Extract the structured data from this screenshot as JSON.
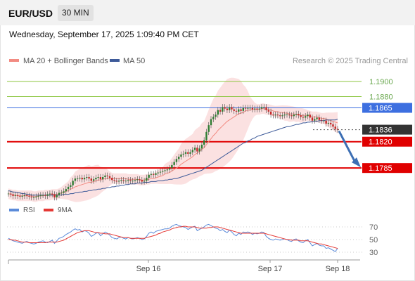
{
  "header": {
    "symbol": "EUR/USD",
    "timeframe": "30 MIN"
  },
  "datetime": "Wednesday, September 17, 2025 1:09:40 PM CET",
  "legend": {
    "items": [
      {
        "label": "MA 20 + Bollinger Bands",
        "color": "#f28b82"
      },
      {
        "label": "MA 50",
        "color": "#3d5a99"
      }
    ],
    "credit": "Research © 2025 Trading Central"
  },
  "rsi_legend": {
    "items": [
      {
        "label": "RSI",
        "color": "#5b8bd9"
      },
      {
        "label": "9MA",
        "color": "#e53935"
      }
    ]
  },
  "chart_data": [
    {
      "type": "line",
      "title": "",
      "ylim": [
        1.1745,
        1.1915
      ],
      "x_tick_labels": [
        "Sep 16",
        "Sep 17",
        "Sep 18"
      ],
      "levels": [
        {
          "label": "1.1900",
          "value": 1.19,
          "kind": "target",
          "color": "#8cc63f"
        },
        {
          "label": "1.1880",
          "value": 1.188,
          "kind": "target",
          "color": "#8cc63f"
        },
        {
          "label": "1.1865",
          "value": 1.1865,
          "kind": "pivot",
          "color": "#3d6fe0"
        },
        {
          "label": "1.1836",
          "value": 1.1836,
          "kind": "last",
          "color": "#333333"
        },
        {
          "label": "1.1820",
          "value": 1.182,
          "kind": "support",
          "color": "#e00000"
        },
        {
          "label": "1.1785",
          "value": 1.1785,
          "kind": "support",
          "color": "#e00000"
        }
      ],
      "series": [
        {
          "name": "Price",
          "values": [
            1.1751,
            1.175,
            1.1748,
            1.1749,
            1.1748,
            1.1747,
            1.1748,
            1.1749,
            1.1748,
            1.1747,
            1.1746,
            1.1746,
            1.1747,
            1.1748,
            1.1749,
            1.1749,
            1.1748,
            1.175,
            1.1751,
            1.175,
            1.1746,
            1.1749,
            1.1752,
            1.1752,
            1.1754,
            1.1757,
            1.176,
            1.1762,
            1.1768,
            1.1771,
            1.1771,
            1.1772,
            1.177,
            1.1772,
            1.1773,
            1.1771,
            1.1768,
            1.177,
            1.1772,
            1.1773,
            1.177,
            1.1773,
            1.1775,
            1.1774,
            1.1772,
            1.1769,
            1.1768,
            1.1767,
            1.1768,
            1.1769,
            1.1768,
            1.1768,
            1.1769,
            1.1768,
            1.1768,
            1.1769,
            1.177,
            1.1769,
            1.1767,
            1.1768,
            1.1772,
            1.1776,
            1.1777,
            1.1776,
            1.1778,
            1.1779,
            1.178,
            1.1781,
            1.1782,
            1.1783,
            1.1785,
            1.1789,
            1.1793,
            1.1797,
            1.18,
            1.1803,
            1.1804,
            1.1806,
            1.1804,
            1.1806,
            1.1809,
            1.1812,
            1.1807,
            1.1811,
            1.1816,
            1.1822,
            1.1833,
            1.1842,
            1.185,
            1.1853,
            1.1856,
            1.1862,
            1.186,
            1.1866,
            1.1864,
            1.1862,
            1.1866,
            1.1863,
            1.1861,
            1.186,
            1.1863,
            1.1861,
            1.1865,
            1.1864,
            1.1865,
            1.1865,
            1.1863,
            1.1864,
            1.1863,
            1.1864,
            1.1866,
            1.1866,
            1.1862,
            1.186,
            1.1856,
            1.1855,
            1.1856,
            1.1855,
            1.1854,
            1.1855,
            1.1856,
            1.1856,
            1.1855,
            1.1854,
            1.1856,
            1.1857,
            1.1855,
            1.1853,
            1.1852,
            1.1854,
            1.1856,
            1.1852,
            1.1848,
            1.185,
            1.1852,
            1.1849,
            1.1848,
            1.1848,
            1.1844,
            1.1845,
            1.1843,
            1.184,
            1.1837,
            1.1836
          ]
        },
        {
          "name": "MA 20",
          "values": [
            1.1751,
            1.175,
            1.1749,
            1.1749,
            1.1748,
            1.1748,
            1.1748,
            1.1748,
            1.1748,
            1.1748,
            1.1748,
            1.1747,
            1.1747,
            1.1748,
            1.1748,
            1.1748,
            1.1749,
            1.1749,
            1.1749,
            1.175,
            1.175,
            1.175,
            1.1751,
            1.1752,
            1.1753,
            1.1754,
            1.1755,
            1.1757,
            1.1758,
            1.176,
            1.1761,
            1.1762,
            1.1763,
            1.1764,
            1.1765,
            1.1766,
            1.1766,
            1.1767,
            1.1768,
            1.1769,
            1.1769,
            1.177,
            1.1771,
            1.1771,
            1.1771,
            1.1771,
            1.1771,
            1.1771,
            1.1771,
            1.1771,
            1.1771,
            1.1771,
            1.177,
            1.177,
            1.177,
            1.177,
            1.177,
            1.1769,
            1.1769,
            1.1769,
            1.177,
            1.177,
            1.1771,
            1.1771,
            1.1772,
            1.1773,
            1.1774,
            1.1775,
            1.1777,
            1.1778,
            1.1779,
            1.1781,
            1.1783,
            1.1785,
            1.1787,
            1.179,
            1.1792,
            1.1794,
            1.1796,
            1.1798,
            1.18,
            1.1803,
            1.1805,
            1.1807,
            1.181,
            1.1812,
            1.1816,
            1.182,
            1.1824,
            1.1828,
            1.1831,
            1.1835,
            1.1838,
            1.1841,
            1.1844,
            1.1847,
            1.1849,
            1.1851,
            1.1853,
            1.1855,
            1.1857,
            1.1858,
            1.1859,
            1.1861,
            1.1862,
            1.1862,
            1.1863,
            1.1863,
            1.1863,
            1.1863,
            1.1864,
            1.1864,
            1.1863,
            1.1863,
            1.1862,
            1.1861,
            1.186,
            1.186,
            1.1859,
            1.1859,
            1.1858,
            1.1858,
            1.1857,
            1.1857,
            1.1857,
            1.1856,
            1.1856,
            1.1855,
            1.1855,
            1.1855,
            1.1855,
            1.1854,
            1.1853,
            1.1853,
            1.1853,
            1.1852,
            1.1851,
            1.1851,
            1.185,
            1.1849,
            1.1848,
            1.1847,
            1.1846,
            1.1845
          ]
        },
        {
          "name": "MA 50",
          "values": [
            1.1755,
            1.1754,
            1.1753,
            1.1753,
            1.1752,
            1.1752,
            1.1751,
            1.1751,
            1.175,
            1.175,
            1.1749,
            1.1749,
            1.1749,
            1.1749,
            1.1749,
            1.1749,
            1.1749,
            1.1749,
            1.1749,
            1.1749,
            1.1749,
            1.1749,
            1.1749,
            1.1749,
            1.175,
            1.175,
            1.175,
            1.1751,
            1.1751,
            1.1752,
            1.1752,
            1.1753,
            1.1753,
            1.1754,
            1.1754,
            1.1755,
            1.1755,
            1.1756,
            1.1756,
            1.1757,
            1.1757,
            1.1758,
            1.1758,
            1.1759,
            1.1759,
            1.176,
            1.176,
            1.1761,
            1.1761,
            1.1762,
            1.1762,
            1.1763,
            1.1763,
            1.1764,
            1.1764,
            1.1764,
            1.1765,
            1.1765,
            1.1765,
            1.1766,
            1.1766,
            1.1766,
            1.1767,
            1.1767,
            1.1767,
            1.1768,
            1.1768,
            1.1768,
            1.1769,
            1.1769,
            1.177,
            1.177,
            1.1771,
            1.1771,
            1.1772,
            1.1773,
            1.1774,
            1.1775,
            1.1776,
            1.1777,
            1.1778,
            1.1779,
            1.178,
            1.1781,
            1.1782,
            1.1784,
            1.1786,
            1.1788,
            1.179,
            1.1792,
            1.1794,
            1.1796,
            1.1798,
            1.18,
            1.1802,
            1.1804,
            1.1806,
            1.1808,
            1.181,
            1.1812,
            1.1814,
            1.1816,
            1.1818,
            1.1819,
            1.1821,
            1.1822,
            1.1824,
            1.1825,
            1.1827,
            1.1828,
            1.1829,
            1.183,
            1.1831,
            1.1832,
            1.1833,
            1.1834,
            1.1835,
            1.1836,
            1.1837,
            1.1838,
            1.1839,
            1.184,
            1.184,
            1.1841,
            1.1842,
            1.1843,
            1.1843,
            1.1844,
            1.1845,
            1.1845,
            1.1846,
            1.1846,
            1.1847,
            1.1847,
            1.1847,
            1.1848,
            1.1848,
            1.1848,
            1.1849,
            1.1849,
            1.1849,
            1.1849,
            1.1849,
            1.185
          ]
        }
      ],
      "forecast": {
        "from": 1.1836,
        "to": 1.1785
      }
    },
    {
      "type": "line",
      "title": "",
      "ylim": [
        20,
        80
      ],
      "ticks": [
        70,
        50,
        30
      ],
      "series": [
        {
          "name": "RSI",
          "values": [
            52,
            50,
            48,
            47,
            46,
            45,
            44,
            46,
            47,
            45,
            44,
            43,
            44,
            46,
            47,
            48,
            46,
            45,
            47,
            49,
            44,
            48,
            52,
            53,
            55,
            58,
            60,
            62,
            65,
            67,
            65,
            66,
            62,
            64,
            63,
            60,
            55,
            57,
            60,
            61,
            56,
            59,
            62,
            60,
            57,
            53,
            52,
            51,
            53,
            54,
            52,
            51,
            53,
            52,
            51,
            52,
            53,
            52,
            50,
            51,
            55,
            60,
            62,
            60,
            63,
            64,
            65,
            66,
            67,
            67,
            68,
            71,
            73,
            74,
            72,
            71,
            70,
            69,
            66,
            68,
            70,
            71,
            64,
            66,
            68,
            70,
            73,
            74,
            72,
            70,
            68,
            67,
            64,
            66,
            63,
            61,
            65,
            62,
            58,
            56,
            60,
            58,
            62,
            61,
            62,
            61,
            58,
            60,
            59,
            60,
            62,
            61,
            55,
            52,
            50,
            49,
            51,
            50,
            49,
            50,
            51,
            50,
            48,
            47,
            50,
            51,
            48,
            46,
            45,
            48,
            50,
            45,
            40,
            42,
            44,
            41,
            40,
            40,
            36,
            37,
            35,
            33,
            31,
            36
          ]
        },
        {
          "name": "9MA",
          "values": [
            50,
            50,
            49,
            49,
            48,
            47,
            46,
            46,
            46,
            45,
            45,
            45,
            45,
            45,
            45,
            45,
            45,
            46,
            46,
            46,
            46,
            46,
            47,
            48,
            49,
            51,
            53,
            55,
            57,
            59,
            61,
            62,
            63,
            64,
            64,
            64,
            63,
            62,
            61,
            61,
            60,
            60,
            59,
            59,
            59,
            58,
            57,
            56,
            55,
            54,
            53,
            53,
            53,
            52,
            52,
            52,
            52,
            52,
            52,
            52,
            53,
            54,
            55,
            56,
            57,
            59,
            60,
            62,
            63,
            64,
            65,
            67,
            68,
            69,
            70,
            70,
            71,
            71,
            70,
            70,
            70,
            70,
            69,
            68,
            68,
            68,
            68,
            69,
            69,
            70,
            70,
            70,
            69,
            68,
            67,
            66,
            65,
            64,
            63,
            62,
            61,
            60,
            60,
            60,
            60,
            60,
            60,
            60,
            60,
            60,
            60,
            60,
            59,
            58,
            57,
            56,
            55,
            54,
            53,
            52,
            51,
            50,
            50,
            49,
            49,
            49,
            49,
            48,
            48,
            48,
            48,
            47,
            46,
            45,
            44,
            43,
            43,
            42,
            41,
            40,
            39,
            38,
            37,
            36
          ]
        }
      ]
    }
  ]
}
